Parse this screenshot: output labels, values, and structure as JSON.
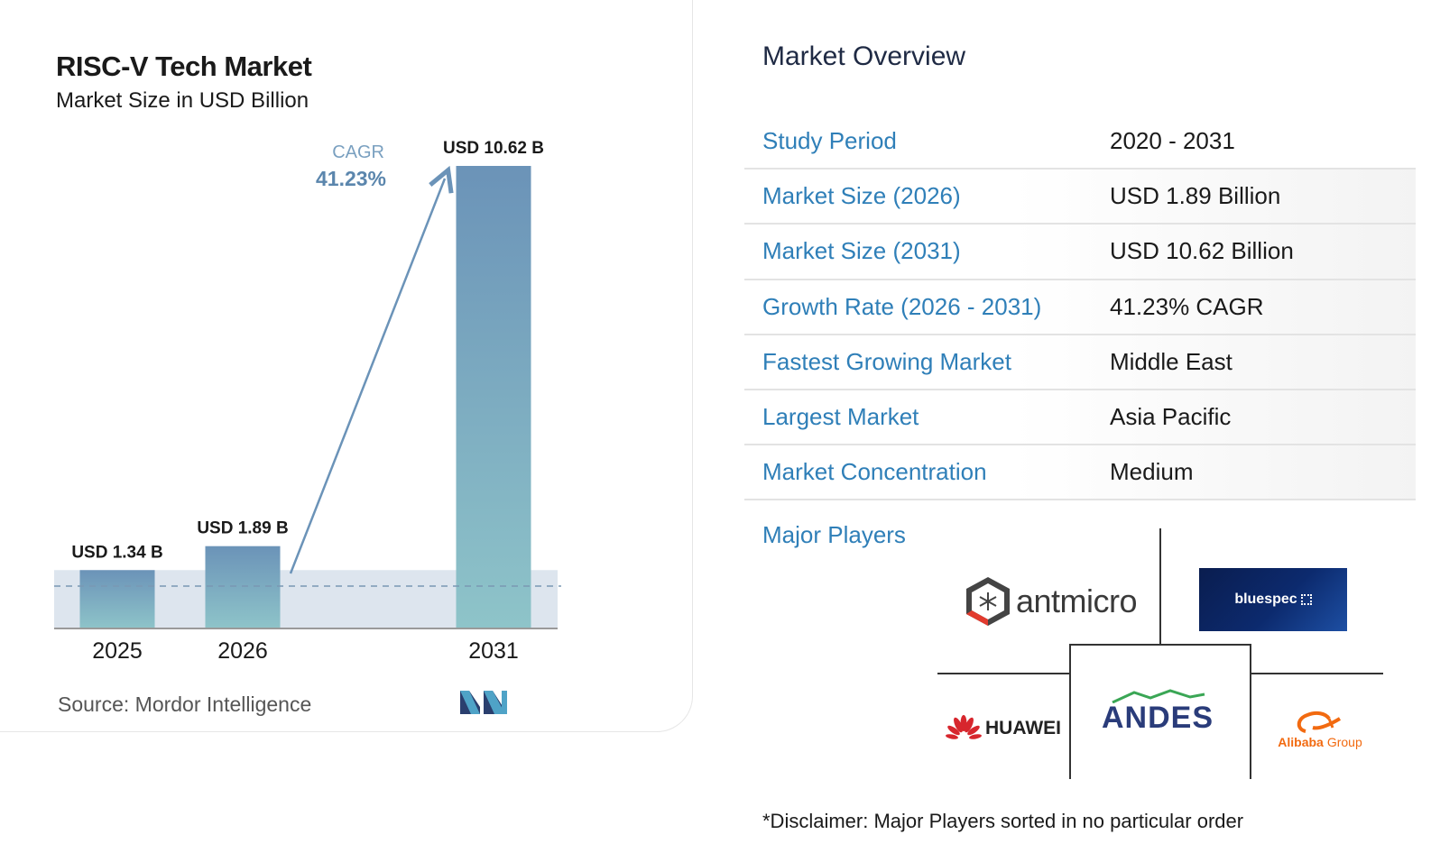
{
  "chart_data": {
    "type": "bar",
    "title": "RISC-V Tech Market",
    "subtitle": "Market Size in USD Billion",
    "categories": [
      "2025",
      "2026",
      "2031"
    ],
    "values": [
      1.34,
      1.89,
      10.62
    ],
    "data_labels": [
      "USD 1.34 B",
      "USD 1.89 B",
      "USD 10.62 B"
    ],
    "ylim": [
      0,
      10.62
    ],
    "cagr_label": "CAGR",
    "cagr_value": "41.23%",
    "colors": {
      "bar_top": "#6b93b8",
      "bar_bottom": "#8ec4c9",
      "band": "#dde5ee",
      "arrow": "#6b93b8",
      "cagr_label": "#7aa0c0",
      "cagr_value": "#5b86ad"
    }
  },
  "source": "Source:  Mordor Intelligence",
  "overview": {
    "title": "Market Overview",
    "rows": [
      {
        "label": "Study Period",
        "value": "2020 - 2031"
      },
      {
        "label": "Market Size (2026)",
        "value": "USD 1.89 Billion"
      },
      {
        "label": "Market Size (2031)",
        "value": "USD 10.62 Billion"
      },
      {
        "label": "Growth Rate (2026 - 2031)",
        "value": "41.23% CAGR"
      },
      {
        "label": "Fastest Growing Market",
        "value": "Middle East"
      },
      {
        "label": "Largest Market",
        "value": "Asia Pacific"
      },
      {
        "label": "Market Concentration",
        "value": "Medium"
      }
    ],
    "players_title": "Major Players",
    "players": {
      "antmicro": "antmicro",
      "bluespec": "bluespec",
      "huawei": "HUAWEI",
      "andes": "ANDES",
      "alibaba": "Alibaba",
      "alibaba_group": "Group"
    },
    "disclaimer": "*Disclaimer: Major Players sorted in no particular order"
  },
  "accent_color": "#2f7fb8"
}
